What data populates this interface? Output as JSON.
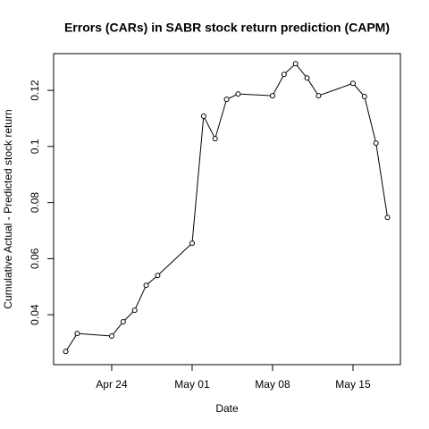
{
  "chart_data": {
    "type": "line",
    "title": "Errors (CARs) in SABR stock return prediction (CAPM)",
    "x_label": "Date",
    "y_label": "Cumulative Actual - Predicted stock return",
    "x": [
      "Apr 20",
      "Apr 21",
      "Apr 24",
      "Apr 25",
      "Apr 26",
      "Apr 27",
      "Apr 28",
      "May 01",
      "May 02",
      "May 03",
      "May 04",
      "May 05",
      "May 08",
      "May 09",
      "May 10",
      "May 11",
      "May 12",
      "May 15",
      "May 16",
      "May 17",
      "May 18"
    ],
    "series": [
      {
        "color": "#000000",
        "values": [
          0.0269,
          0.0333,
          0.0324,
          0.0375,
          0.0416,
          0.0505,
          0.054,
          0.0655,
          0.1108,
          0.1028,
          0.1168,
          0.1187,
          0.1181,
          0.1257,
          0.1295,
          0.1244,
          0.1181,
          0.1225,
          0.1178,
          0.1012,
          0.0747
        ]
      }
    ],
    "xlim": [
      "Apr 19",
      "May 19"
    ],
    "xticks": [
      "Apr 24",
      "May 01",
      "May 08",
      "May 15"
    ],
    "ylim": [
      0.0222,
      0.1331
    ],
    "yticks": [
      0.04,
      0.06,
      0.08,
      0.1,
      0.12
    ]
  }
}
